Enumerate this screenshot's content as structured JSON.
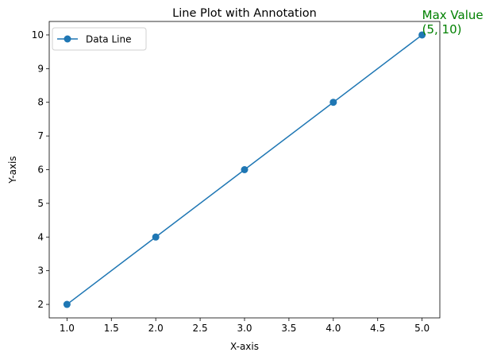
{
  "chart_data": {
    "type": "line",
    "title": "Line Plot with Annotation",
    "xlabel": "X-axis",
    "ylabel": "Y-axis",
    "xlim": [
      0.8,
      5.2
    ],
    "ylim": [
      1.6,
      10.4
    ],
    "xticks": [
      "1.0",
      "1.5",
      "2.0",
      "2.5",
      "3.0",
      "3.5",
      "4.0",
      "4.5",
      "5.0"
    ],
    "yticks": [
      "2",
      "3",
      "4",
      "5",
      "6",
      "7",
      "8",
      "9",
      "10"
    ],
    "grid": false,
    "legend_position": "upper-left",
    "series": [
      {
        "name": "Data Line",
        "color": "#1f77b4",
        "marker": "circle",
        "x": [
          1,
          2,
          3,
          4,
          5
        ],
        "y": [
          2,
          4,
          6,
          8,
          10
        ]
      }
    ],
    "annotation": {
      "line1": "Max Value",
      "line2": "(5, 10)",
      "color": "#008000",
      "x": 5,
      "y": 10
    }
  }
}
